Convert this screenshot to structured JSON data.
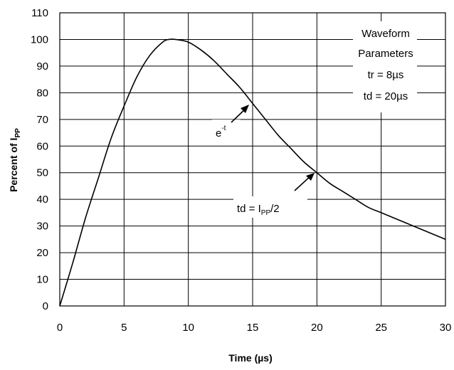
{
  "chart_data": {
    "type": "line",
    "title": "",
    "xlabel": "Time (µs)",
    "ylabel_main": "Percent of I",
    "ylabel_sub": "PP",
    "xlim": [
      0,
      30
    ],
    "ylim": [
      0,
      110
    ],
    "x_ticks": [
      "0",
      "5",
      "10",
      "15",
      "20",
      "25",
      "30"
    ],
    "y_ticks": [
      "0",
      "10",
      "20",
      "30",
      "40",
      "50",
      "60",
      "70",
      "80",
      "90",
      "100",
      "110"
    ],
    "grid": true,
    "legend": "none",
    "series": [
      {
        "x": [
          0,
          1,
          2,
          3,
          4,
          5,
          6,
          7,
          8,
          8.5,
          9,
          10,
          11,
          12,
          13,
          14,
          15,
          16,
          17,
          18,
          19,
          20,
          21,
          22,
          23,
          24,
          25,
          26,
          27,
          28,
          29,
          30
        ],
        "y": [
          0,
          16,
          33,
          48,
          63,
          75,
          86,
          94,
          99,
          100,
          100,
          99,
          96,
          92,
          87,
          82,
          76,
          70,
          64,
          59,
          54,
          50,
          46,
          43,
          40,
          37,
          35,
          33,
          31,
          29,
          27,
          25
        ]
      }
    ],
    "annotations": {
      "params_line1": "Waveform",
      "params_line2": "Parameters",
      "params_line3": "tr = 8µs",
      "params_line4": "td = 20µs",
      "exp_base": "e",
      "exp_sup": "-t",
      "td_prefix": "td = I",
      "td_sub": "PP",
      "td_suffix": "/2"
    },
    "line_color": "#000000",
    "grid_color": "#000000"
  }
}
